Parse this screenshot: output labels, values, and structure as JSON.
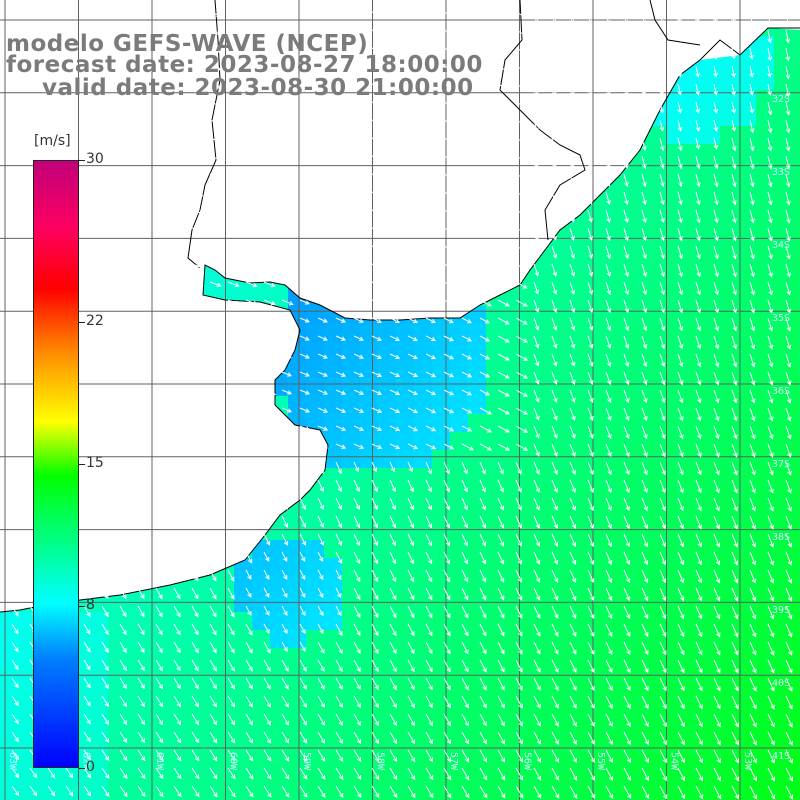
{
  "title": {
    "line1": "modelo GEFS-WAVE (NCEP)",
    "line2": "forecast date: 2023-08-27 18:00:00",
    "line3": "valid date: 2023-08-30 21:00:00"
  },
  "legend": {
    "unit": "[m/s]",
    "ticks": [
      "30",
      "22",
      "15",
      "8",
      "0"
    ],
    "tick_values": [
      30,
      22,
      15,
      8,
      0
    ],
    "min": 0,
    "max": 30,
    "colors": [
      "#0000ff",
      "#0080ff",
      "#00ffff",
      "#00ff40",
      "#00ff00",
      "#ffff00",
      "#ff9000",
      "#ff0000",
      "#c0007a"
    ]
  },
  "map": {
    "lat_labels": [
      "32S",
      "33S",
      "34S",
      "35S",
      "36S",
      "37S",
      "38S",
      "39S",
      "40S",
      "41S"
    ],
    "lon_labels": [
      "63W",
      "62W",
      "61W",
      "60W",
      "59W",
      "58W",
      "57W",
      "56W",
      "55W",
      "54W",
      "53W"
    ],
    "field": "wind speed and direction",
    "land_color": "#ffffff",
    "grid_color": "#555555"
  }
}
